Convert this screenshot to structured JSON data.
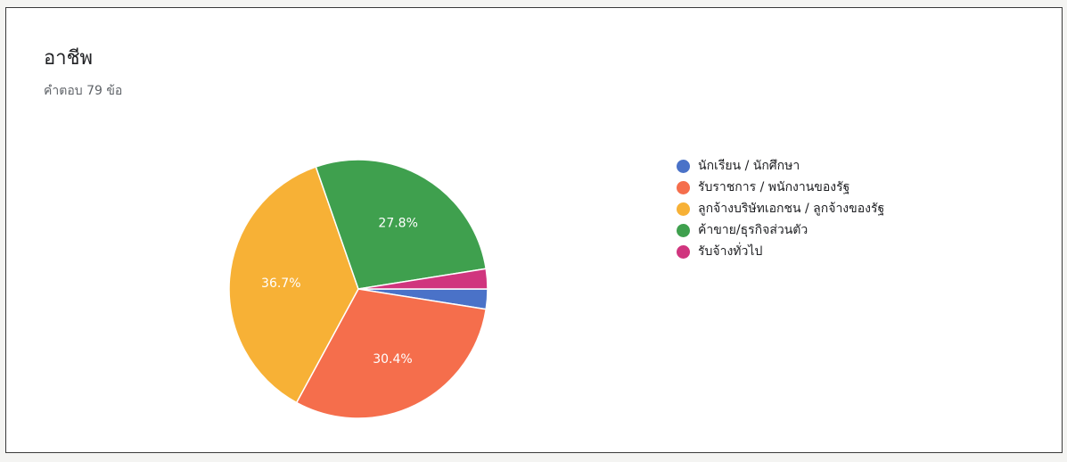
{
  "card": {
    "title": "อาชีพ",
    "subtitle": "คำตอบ 79 ข้อ"
  },
  "chart_data": {
    "type": "pie",
    "title": "อาชีพ",
    "legend_position": "right",
    "slices": [
      {
        "label": "นักเรียน / นักศึกษา",
        "value": 2.5,
        "color": "#4a72c8",
        "show_label": false
      },
      {
        "label": "รับราชการ / พนักงานของรัฐ",
        "value": 30.4,
        "color": "#f56e4c",
        "show_label": true
      },
      {
        "label": "ลูกจ้างบริษัทเอกชน / ลูกจ้างของรัฐ",
        "value": 36.7,
        "color": "#f7b136",
        "show_label": true
      },
      {
        "label": "ค้าขาย/ธุรกิจส่วนตัว",
        "value": 27.8,
        "color": "#3fa04e",
        "show_label": true
      },
      {
        "label": "รับจ้างทั่วไป",
        "value": 2.5,
        "color": "#d0357e",
        "show_label": false
      }
    ]
  }
}
